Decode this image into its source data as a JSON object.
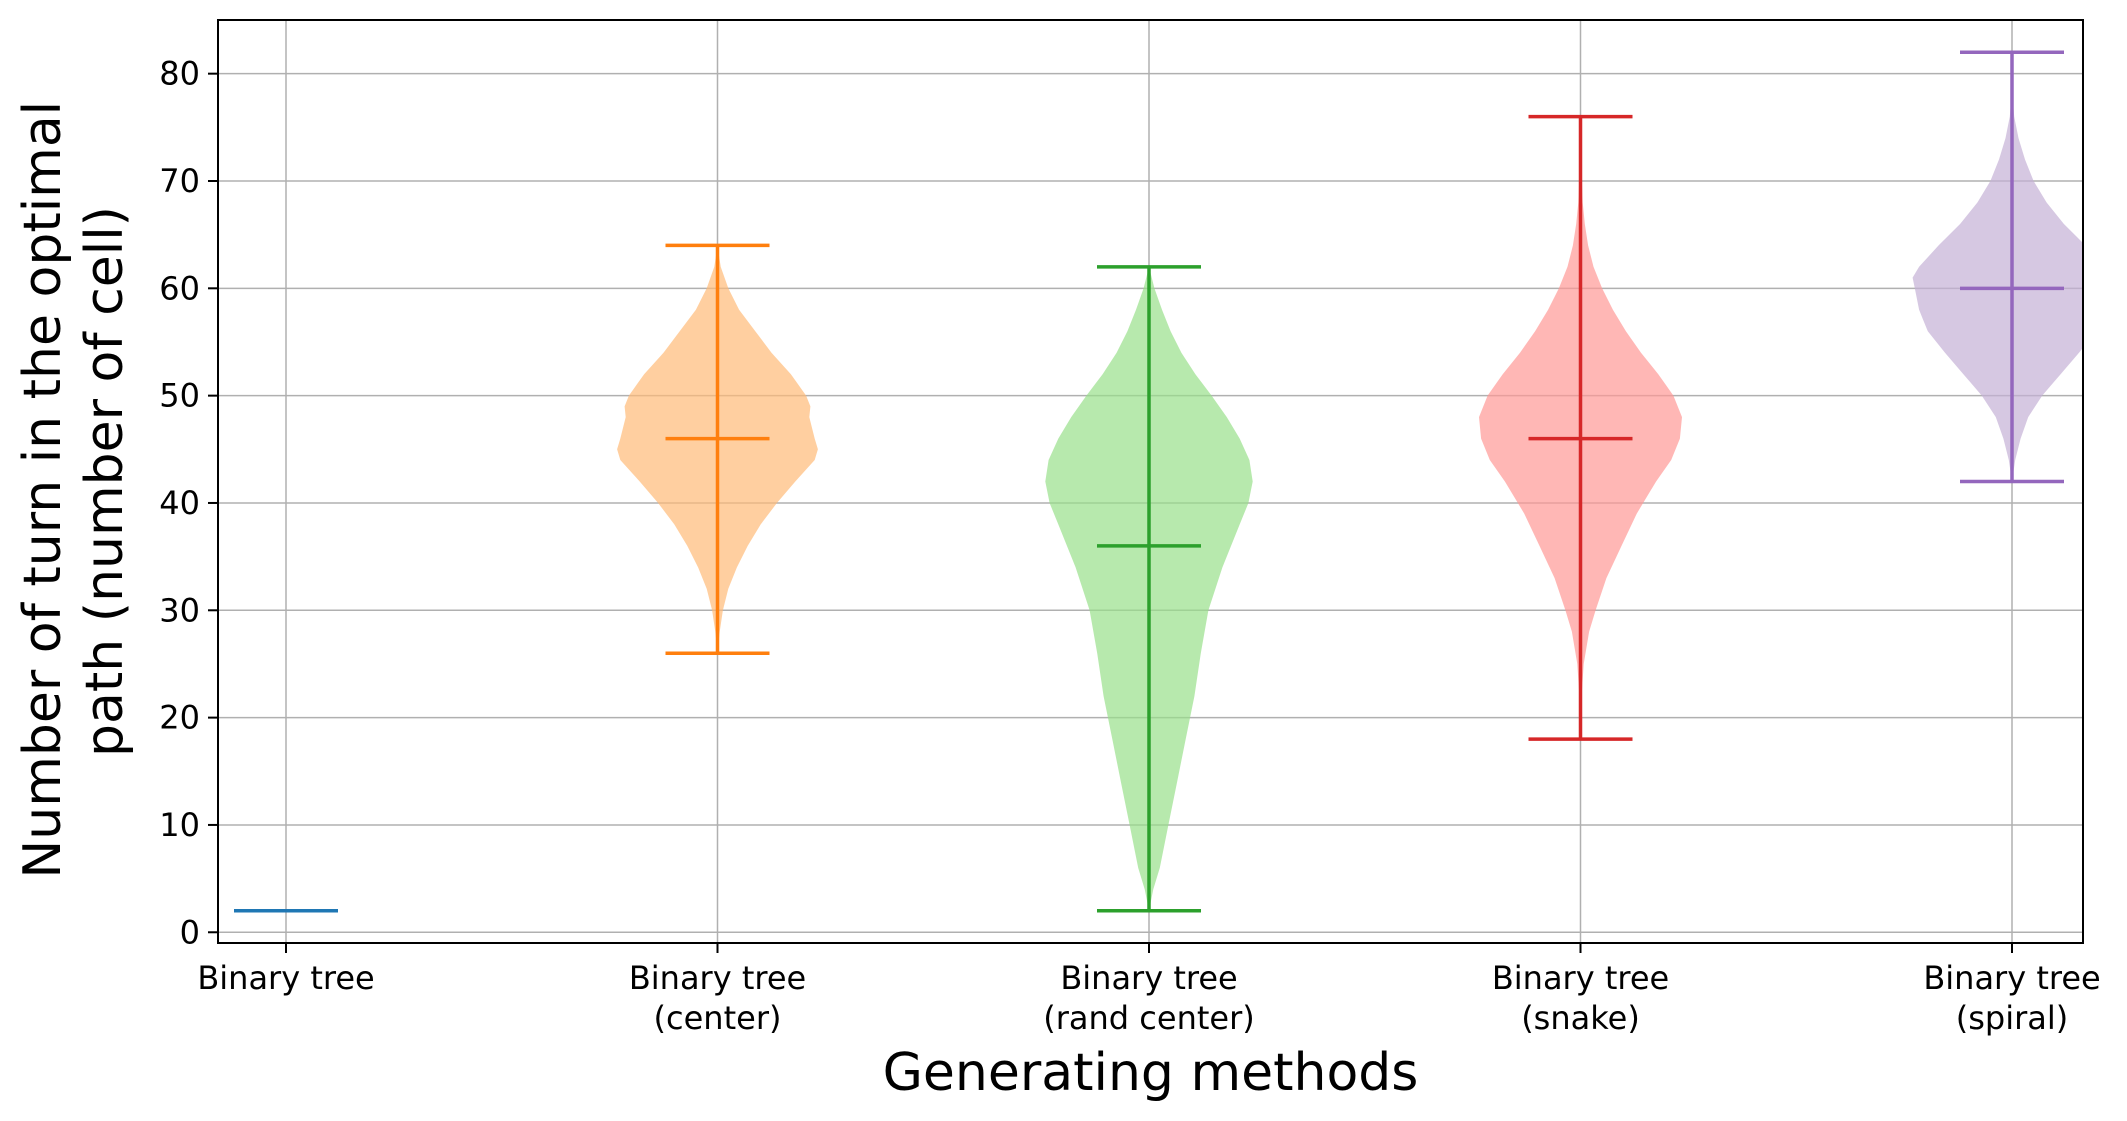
{
  "chart_data": {
    "type": "violin",
    "title": "",
    "xlabel": "Generating methods",
    "ylabel_lines": [
      "Number of turn in the optimal",
      "path (number of cell)"
    ],
    "ylim": [
      -1,
      85
    ],
    "yticks": [
      0,
      10,
      20,
      30,
      40,
      50,
      60,
      70,
      80
    ],
    "grid": true,
    "categories": [
      {
        "label_lines": [
          "Binary tree"
        ],
        "color": "#1f77b4",
        "fill": "#aec7e8",
        "min": 2,
        "max": 2,
        "median": 2,
        "density": []
      },
      {
        "label_lines": [
          "Binary tree",
          "(center)"
        ],
        "color": "#ff7f0e",
        "fill": "#ffbb78",
        "min": 26,
        "max": 64,
        "median": 46,
        "density": [
          [
            26,
            0
          ],
          [
            28,
            0.02
          ],
          [
            30,
            0.05
          ],
          [
            32,
            0.1
          ],
          [
            34,
            0.18
          ],
          [
            36,
            0.28
          ],
          [
            38,
            0.4
          ],
          [
            40,
            0.55
          ],
          [
            42,
            0.72
          ],
          [
            44,
            0.9
          ],
          [
            45,
            0.93
          ],
          [
            46,
            0.9
          ],
          [
            48,
            0.85
          ],
          [
            49,
            0.86
          ],
          [
            50,
            0.82
          ],
          [
            52,
            0.68
          ],
          [
            54,
            0.5
          ],
          [
            56,
            0.35
          ],
          [
            58,
            0.2
          ],
          [
            60,
            0.1
          ],
          [
            62,
            0.03
          ],
          [
            64,
            0
          ]
        ]
      },
      {
        "label_lines": [
          "Binary tree",
          "(rand center)"
        ],
        "color": "#2ca02c",
        "fill": "#98df8a",
        "min": 2,
        "max": 62,
        "median": 36,
        "density": [
          [
            2,
            0
          ],
          [
            4,
            0.04
          ],
          [
            6,
            0.1
          ],
          [
            10,
            0.18
          ],
          [
            14,
            0.26
          ],
          [
            18,
            0.34
          ],
          [
            22,
            0.42
          ],
          [
            26,
            0.48
          ],
          [
            30,
            0.55
          ],
          [
            34,
            0.68
          ],
          [
            38,
            0.84
          ],
          [
            40,
            0.92
          ],
          [
            42,
            0.96
          ],
          [
            44,
            0.93
          ],
          [
            46,
            0.84
          ],
          [
            48,
            0.72
          ],
          [
            50,
            0.58
          ],
          [
            52,
            0.43
          ],
          [
            54,
            0.3
          ],
          [
            56,
            0.2
          ],
          [
            58,
            0.12
          ],
          [
            60,
            0.05
          ],
          [
            62,
            0
          ]
        ]
      },
      {
        "label_lines": [
          "Binary tree",
          "(snake)"
        ],
        "color": "#d62728",
        "fill": "#ff9896",
        "min": 18,
        "max": 76,
        "median": 46,
        "density": [
          [
            18,
            0
          ],
          [
            22,
            0.01
          ],
          [
            25,
            0.03
          ],
          [
            28,
            0.08
          ],
          [
            30,
            0.14
          ],
          [
            33,
            0.24
          ],
          [
            36,
            0.38
          ],
          [
            39,
            0.52
          ],
          [
            42,
            0.7
          ],
          [
            44,
            0.84
          ],
          [
            46,
            0.92
          ],
          [
            48,
            0.94
          ],
          [
            50,
            0.86
          ],
          [
            52,
            0.72
          ],
          [
            54,
            0.56
          ],
          [
            56,
            0.42
          ],
          [
            58,
            0.3
          ],
          [
            60,
            0.2
          ],
          [
            62,
            0.12
          ],
          [
            64,
            0.07
          ],
          [
            66,
            0.04
          ],
          [
            68,
            0.02
          ],
          [
            72,
            0.005
          ],
          [
            76,
            0
          ]
        ]
      },
      {
        "label_lines": [
          "Binary tree",
          "(spiral)"
        ],
        "color": "#9467bd",
        "fill": "#c5b0d5",
        "min": 42,
        "max": 82,
        "median": 60,
        "density": [
          [
            42,
            0
          ],
          [
            44,
            0.03
          ],
          [
            46,
            0.08
          ],
          [
            48,
            0.15
          ],
          [
            50,
            0.28
          ],
          [
            52,
            0.45
          ],
          [
            54,
            0.62
          ],
          [
            56,
            0.78
          ],
          [
            57,
            0.82
          ],
          [
            58,
            0.86
          ],
          [
            60,
            0.9
          ],
          [
            61,
            0.92
          ],
          [
            62,
            0.86
          ],
          [
            64,
            0.68
          ],
          [
            66,
            0.48
          ],
          [
            68,
            0.32
          ],
          [
            70,
            0.2
          ],
          [
            72,
            0.12
          ],
          [
            74,
            0.06
          ],
          [
            76,
            0.02
          ],
          [
            78,
            0.005
          ],
          [
            82,
            0
          ]
        ]
      }
    ]
  }
}
